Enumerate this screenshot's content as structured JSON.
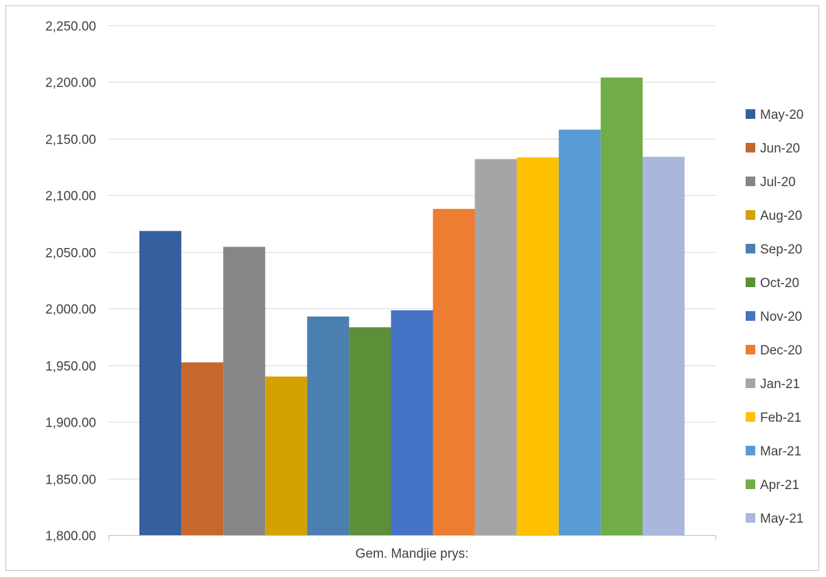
{
  "chart_data": {
    "type": "bar",
    "categories": [
      "Gem. Mandjie prys:"
    ],
    "series": [
      {
        "name": "May-20",
        "values": [
          2068.5
        ],
        "color": "#365f9f"
      },
      {
        "name": "Jun-20",
        "values": [
          1952.5
        ],
        "color": "#c6682c"
      },
      {
        "name": "Jul-20",
        "values": [
          2054.5
        ],
        "color": "#868686"
      },
      {
        "name": "Aug-20",
        "values": [
          1940.0
        ],
        "color": "#d4a100"
      },
      {
        "name": "Sep-20",
        "values": [
          1993.0
        ],
        "color": "#4a7fb0"
      },
      {
        "name": "Oct-20",
        "values": [
          1983.5
        ],
        "color": "#5b8f38"
      },
      {
        "name": "Nov-20",
        "values": [
          1998.5
        ],
        "color": "#4472c4"
      },
      {
        "name": "Dec-20",
        "values": [
          2088.0
        ],
        "color": "#ed7d31"
      },
      {
        "name": "Jan-21",
        "values": [
          2132.0
        ],
        "color": "#a5a5a5"
      },
      {
        "name": "Feb-21",
        "values": [
          2133.5
        ],
        "color": "#ffc000"
      },
      {
        "name": "Mar-21",
        "values": [
          2158.0
        ],
        "color": "#5b9bd5"
      },
      {
        "name": "Apr-21",
        "values": [
          2204.0
        ],
        "color": "#70ad47"
      },
      {
        "name": "May-21",
        "values": [
          2134.0
        ],
        "color": "#a9b7dc"
      }
    ],
    "y_ticks": [
      "1,800.00",
      "1,850.00",
      "1,900.00",
      "1,950.00",
      "2,000.00",
      "2,050.00",
      "2,100.00",
      "2,150.00",
      "2,200.00",
      "2,250.00"
    ],
    "ylim": [
      1800,
      2250
    ],
    "title": "",
    "xlabel": "",
    "ylabel": "",
    "grid": true,
    "legend_position": "right",
    "gridline_color": "#d9d9d9",
    "axis_color": "#bfbfbf"
  }
}
